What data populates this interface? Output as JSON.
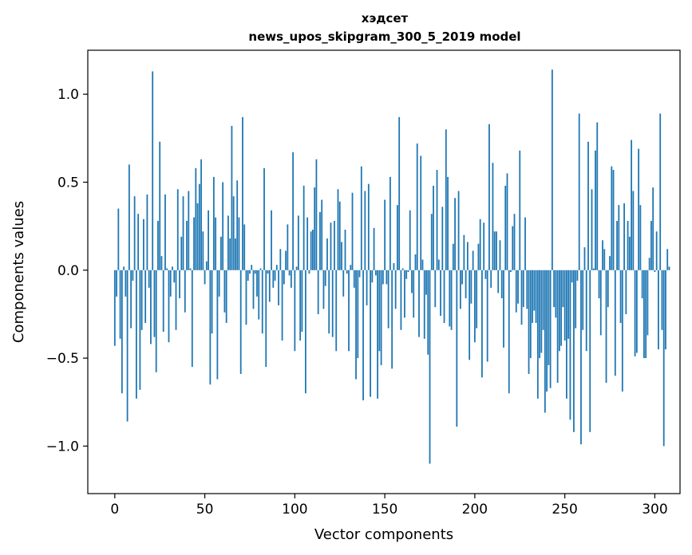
{
  "chart_data": {
    "type": "bar",
    "title": "хэдсет",
    "subtitle": "news_upos_skipgram_300_5_2019 model",
    "xlabel": "Vector components",
    "ylabel": "Components values",
    "xlim": [
      -15,
      314
    ],
    "ylim": [
      -1.27,
      1.25
    ],
    "x_ticks": [
      0,
      50,
      100,
      150,
      200,
      250,
      300
    ],
    "y_ticks": [
      -1.0,
      -0.5,
      0.0,
      0.5,
      1.0
    ],
    "x_tick_labels": [
      "0",
      "50",
      "100",
      "150",
      "200",
      "250",
      "300"
    ],
    "y_tick_labels": [
      "−1.0",
      "−0.5",
      "0.0",
      "0.5",
      "1.0"
    ],
    "bar_color": "#1f77b4",
    "values": [
      -0.43,
      -0.15,
      0.35,
      -0.39,
      -0.7,
      0.02,
      -0.15,
      -0.86,
      0.6,
      -0.33,
      -0.06,
      0.42,
      -0.73,
      0.32,
      -0.68,
      -0.34,
      0.29,
      -0.3,
      0.43,
      -0.1,
      -0.42,
      1.13,
      -0.38,
      -0.58,
      0.28,
      0.73,
      0.08,
      -0.35,
      0.43,
      0.01,
      -0.41,
      -0.15,
      0.02,
      -0.07,
      -0.34,
      0.46,
      -0.16,
      0.19,
      0.42,
      -0.24,
      0.28,
      0.45,
      0.01,
      -0.55,
      0.3,
      0.58,
      0.38,
      0.49,
      0.63,
      0.22,
      -0.08,
      0.05,
      0.34,
      -0.65,
      -0.36,
      0.53,
      0.3,
      -0.62,
      -0.15,
      0.19,
      0.5,
      -0.24,
      -0.3,
      0.31,
      0.18,
      0.82,
      0.42,
      0.18,
      0.51,
      0.3,
      -0.59,
      0.87,
      0.26,
      -0.31,
      -0.06,
      -0.02,
      0.03,
      -0.22,
      -0.02,
      -0.15,
      -0.28,
      0.01,
      -0.36,
      0.58,
      -0.55,
      -0.02,
      -0.18,
      0.34,
      -0.1,
      -0.06,
      0.03,
      -0.2,
      0.12,
      -0.4,
      -0.08,
      0.11,
      0.26,
      -0.03,
      -0.1,
      0.67,
      -0.46,
      0.02,
      0.31,
      -0.4,
      -0.35,
      0.48,
      -0.7,
      0.3,
      -0.02,
      0.22,
      0.23,
      0.47,
      0.63,
      -0.25,
      0.33,
      0.4,
      -0.22,
      -0.09,
      0.18,
      -0.36,
      0.27,
      -0.38,
      0.28,
      -0.46,
      0.46,
      0.39,
      0.16,
      -0.15,
      0.23,
      -0.02,
      -0.46,
      0.03,
      0.44,
      -0.1,
      -0.62,
      -0.5,
      -0.04,
      0.59,
      -0.74,
      0.45,
      -0.2,
      0.49,
      -0.72,
      -0.07,
      0.24,
      -0.03,
      -0.73,
      -0.46,
      -0.54,
      -0.08,
      0.4,
      -0.08,
      -0.33,
      0.53,
      -0.56,
      0.04,
      -0.22,
      0.37,
      0.87,
      -0.34,
      0.01,
      -0.27,
      -0.05,
      -0.01,
      0.34,
      -0.13,
      -0.27,
      0.09,
      0.72,
      -0.38,
      0.65,
      0.06,
      -0.39,
      -0.14,
      -0.48,
      -1.1,
      0.32,
      0.48,
      -0.21,
      0.57,
      0.06,
      -0.26,
      0.36,
      -0.3,
      0.8,
      0.53,
      -0.32,
      -0.34,
      0.15,
      0.41,
      -0.89,
      0.45,
      -0.22,
      -0.08,
      0.2,
      -0.16,
      0.16,
      -0.51,
      -0.19,
      0.11,
      -0.41,
      -0.33,
      0.15,
      0.29,
      -0.61,
      0.27,
      -0.05,
      -0.52,
      0.83,
      -0.1,
      0.61,
      0.22,
      0.22,
      -0.13,
      0.17,
      -0.16,
      -0.44,
      0.48,
      0.55,
      -0.7,
      -0.01,
      0.25,
      0.32,
      -0.24,
      -0.19,
      0.68,
      -0.31,
      -0.21,
      0.3,
      -0.22,
      -0.59,
      -0.5,
      -0.3,
      -0.23,
      -0.3,
      -0.73,
      -0.5,
      -0.47,
      -0.34,
      -0.81,
      -0.69,
      -0.54,
      -0.67,
      1.14,
      -0.21,
      -0.27,
      -0.64,
      -0.46,
      -0.43,
      -0.21,
      -0.4,
      -0.73,
      -0.39,
      -0.85,
      -0.07,
      -0.92,
      -0.33,
      -0.06,
      0.89,
      -0.99,
      -0.34,
      0.13,
      -0.46,
      0.73,
      -0.92,
      0.46,
      0.01,
      0.68,
      0.84,
      -0.16,
      -0.37,
      0.17,
      0.12,
      -0.64,
      -0.21,
      0.08,
      0.59,
      0.57,
      -0.6,
      0.28,
      0.37,
      -0.3,
      -0.69,
      0.38,
      -0.25,
      0.28,
      0.19,
      0.74,
      0.45,
      -0.49,
      -0.47,
      0.69,
      0.37,
      -0.16,
      -0.5,
      -0.5,
      -0.37,
      0.07,
      0.28,
      0.47,
      -0.01,
      0.22,
      -0.45,
      0.89,
      -0.34,
      -1.0,
      -0.45,
      0.12,
      0.02
    ]
  }
}
